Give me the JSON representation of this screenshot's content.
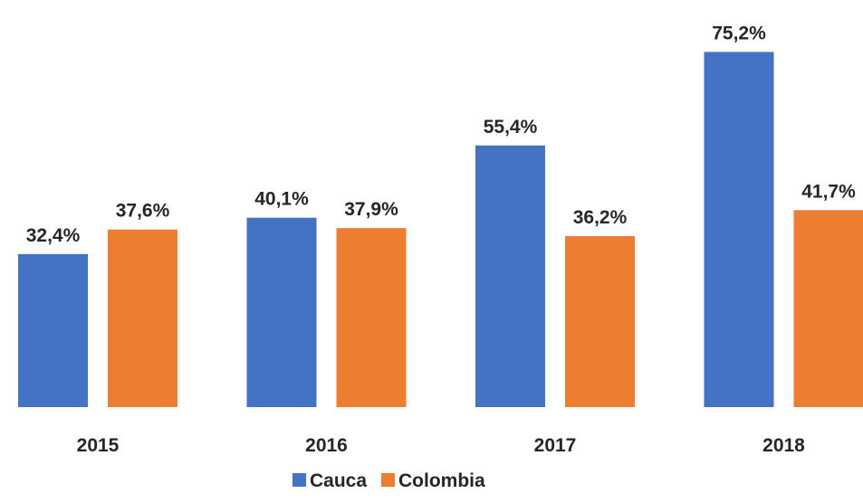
{
  "chart_data": {
    "type": "bar",
    "categories": [
      "2015",
      "2016",
      "2017",
      "2018"
    ],
    "series": [
      {
        "name": "Cauca",
        "values": [
          32.4,
          40.1,
          55.4,
          75.2
        ],
        "labels": [
          "32,4%",
          "40,1%",
          "55,4%",
          "75,2%"
        ],
        "color": "#4472C4"
      },
      {
        "name": "Colombia",
        "values": [
          37.6,
          37.9,
          36.2,
          41.7
        ],
        "labels": [
          "37,6%",
          "37,9%",
          "36,2%",
          "41,7%"
        ],
        "color": "#ED7D31"
      }
    ],
    "unit": "%",
    "ylim": [
      0,
      77
    ],
    "grid": false,
    "legend_position": "bottom"
  }
}
